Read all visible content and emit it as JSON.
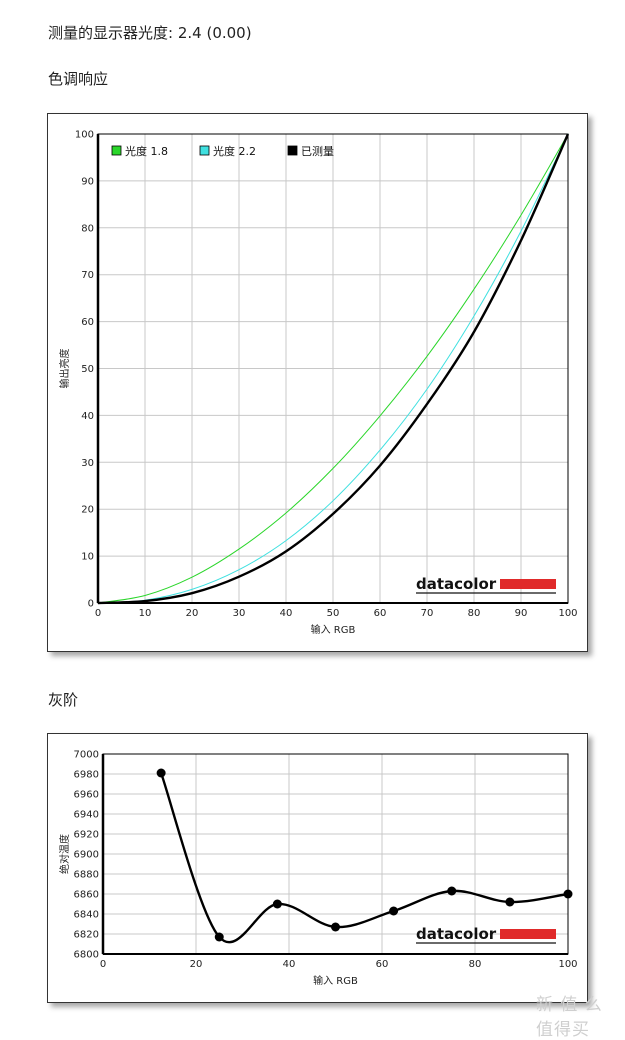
{
  "header": {
    "gamma_label": "测量的显示器光度:",
    "gamma_value": "2.4 (0.00)",
    "section1_title": "色调响应",
    "section2_title": "灰阶"
  },
  "watermark": "新 值 么 值得买",
  "brand": {
    "logo_text": "datacolor",
    "accent": "#e02a2a"
  },
  "chart_data": [
    {
      "type": "line",
      "xlabel": "输入 RGB",
      "ylabel": "输出亮度",
      "xlim": [
        0,
        100
      ],
      "ylim": [
        0,
        100
      ],
      "xticks": [
        "0",
        "10",
        "20",
        "30",
        "40",
        "50",
        "60",
        "70",
        "80",
        "90",
        "100"
      ],
      "yticks": [
        "0",
        "10",
        "20",
        "30",
        "40",
        "50",
        "60",
        "70",
        "80",
        "90",
        "100"
      ],
      "grid": true,
      "legend_position": "top-left",
      "series": [
        {
          "name": "光度 1.8",
          "color": "#2ad62a",
          "width": 1,
          "x": [
            0,
            10,
            20,
            30,
            40,
            50,
            60,
            70,
            80,
            90,
            100
          ],
          "y": [
            0,
            1.6,
            5.5,
            11.5,
            19.2,
            28.7,
            39.9,
            52.6,
            66.9,
            82.7,
            100
          ]
        },
        {
          "name": "光度 2.2",
          "color": "#3fe0e0",
          "width": 1,
          "x": [
            0,
            10,
            20,
            30,
            40,
            50,
            60,
            70,
            80,
            90,
            100
          ],
          "y": [
            0,
            0.6,
            2.9,
            7.1,
            13.3,
            21.8,
            32.6,
            45.6,
            61.2,
            79.3,
            100
          ]
        },
        {
          "name": "已测量",
          "color": "#000000",
          "width": 2.4,
          "x": [
            0,
            10,
            20,
            30,
            40,
            50,
            60,
            70,
            80,
            90,
            100
          ],
          "y": [
            0,
            0.4,
            2.1,
            5.6,
            11.0,
            19.0,
            29.3,
            42.4,
            57.8,
            77.3,
            100
          ]
        }
      ]
    },
    {
      "type": "line",
      "xlabel": "输入 RGB",
      "ylabel": "绝对温度",
      "xlim": [
        0,
        100
      ],
      "ylim": [
        6800,
        7000
      ],
      "xticks": [
        "0",
        "20",
        "40",
        "60",
        "80",
        "100"
      ],
      "yticks": [
        "6800",
        "6820",
        "6840",
        "6860",
        "6880",
        "6900",
        "6920",
        "6940",
        "6960",
        "6980",
        "7000"
      ],
      "grid": true,
      "series": [
        {
          "name": "",
          "color": "#000000",
          "width": 2.4,
          "x": [
            12.5,
            25,
            37.5,
            50,
            62.5,
            75,
            87.5,
            100
          ],
          "y": [
            6981,
            6817,
            6850,
            6827,
            6843,
            6863,
            6852,
            6860
          ]
        }
      ]
    }
  ]
}
